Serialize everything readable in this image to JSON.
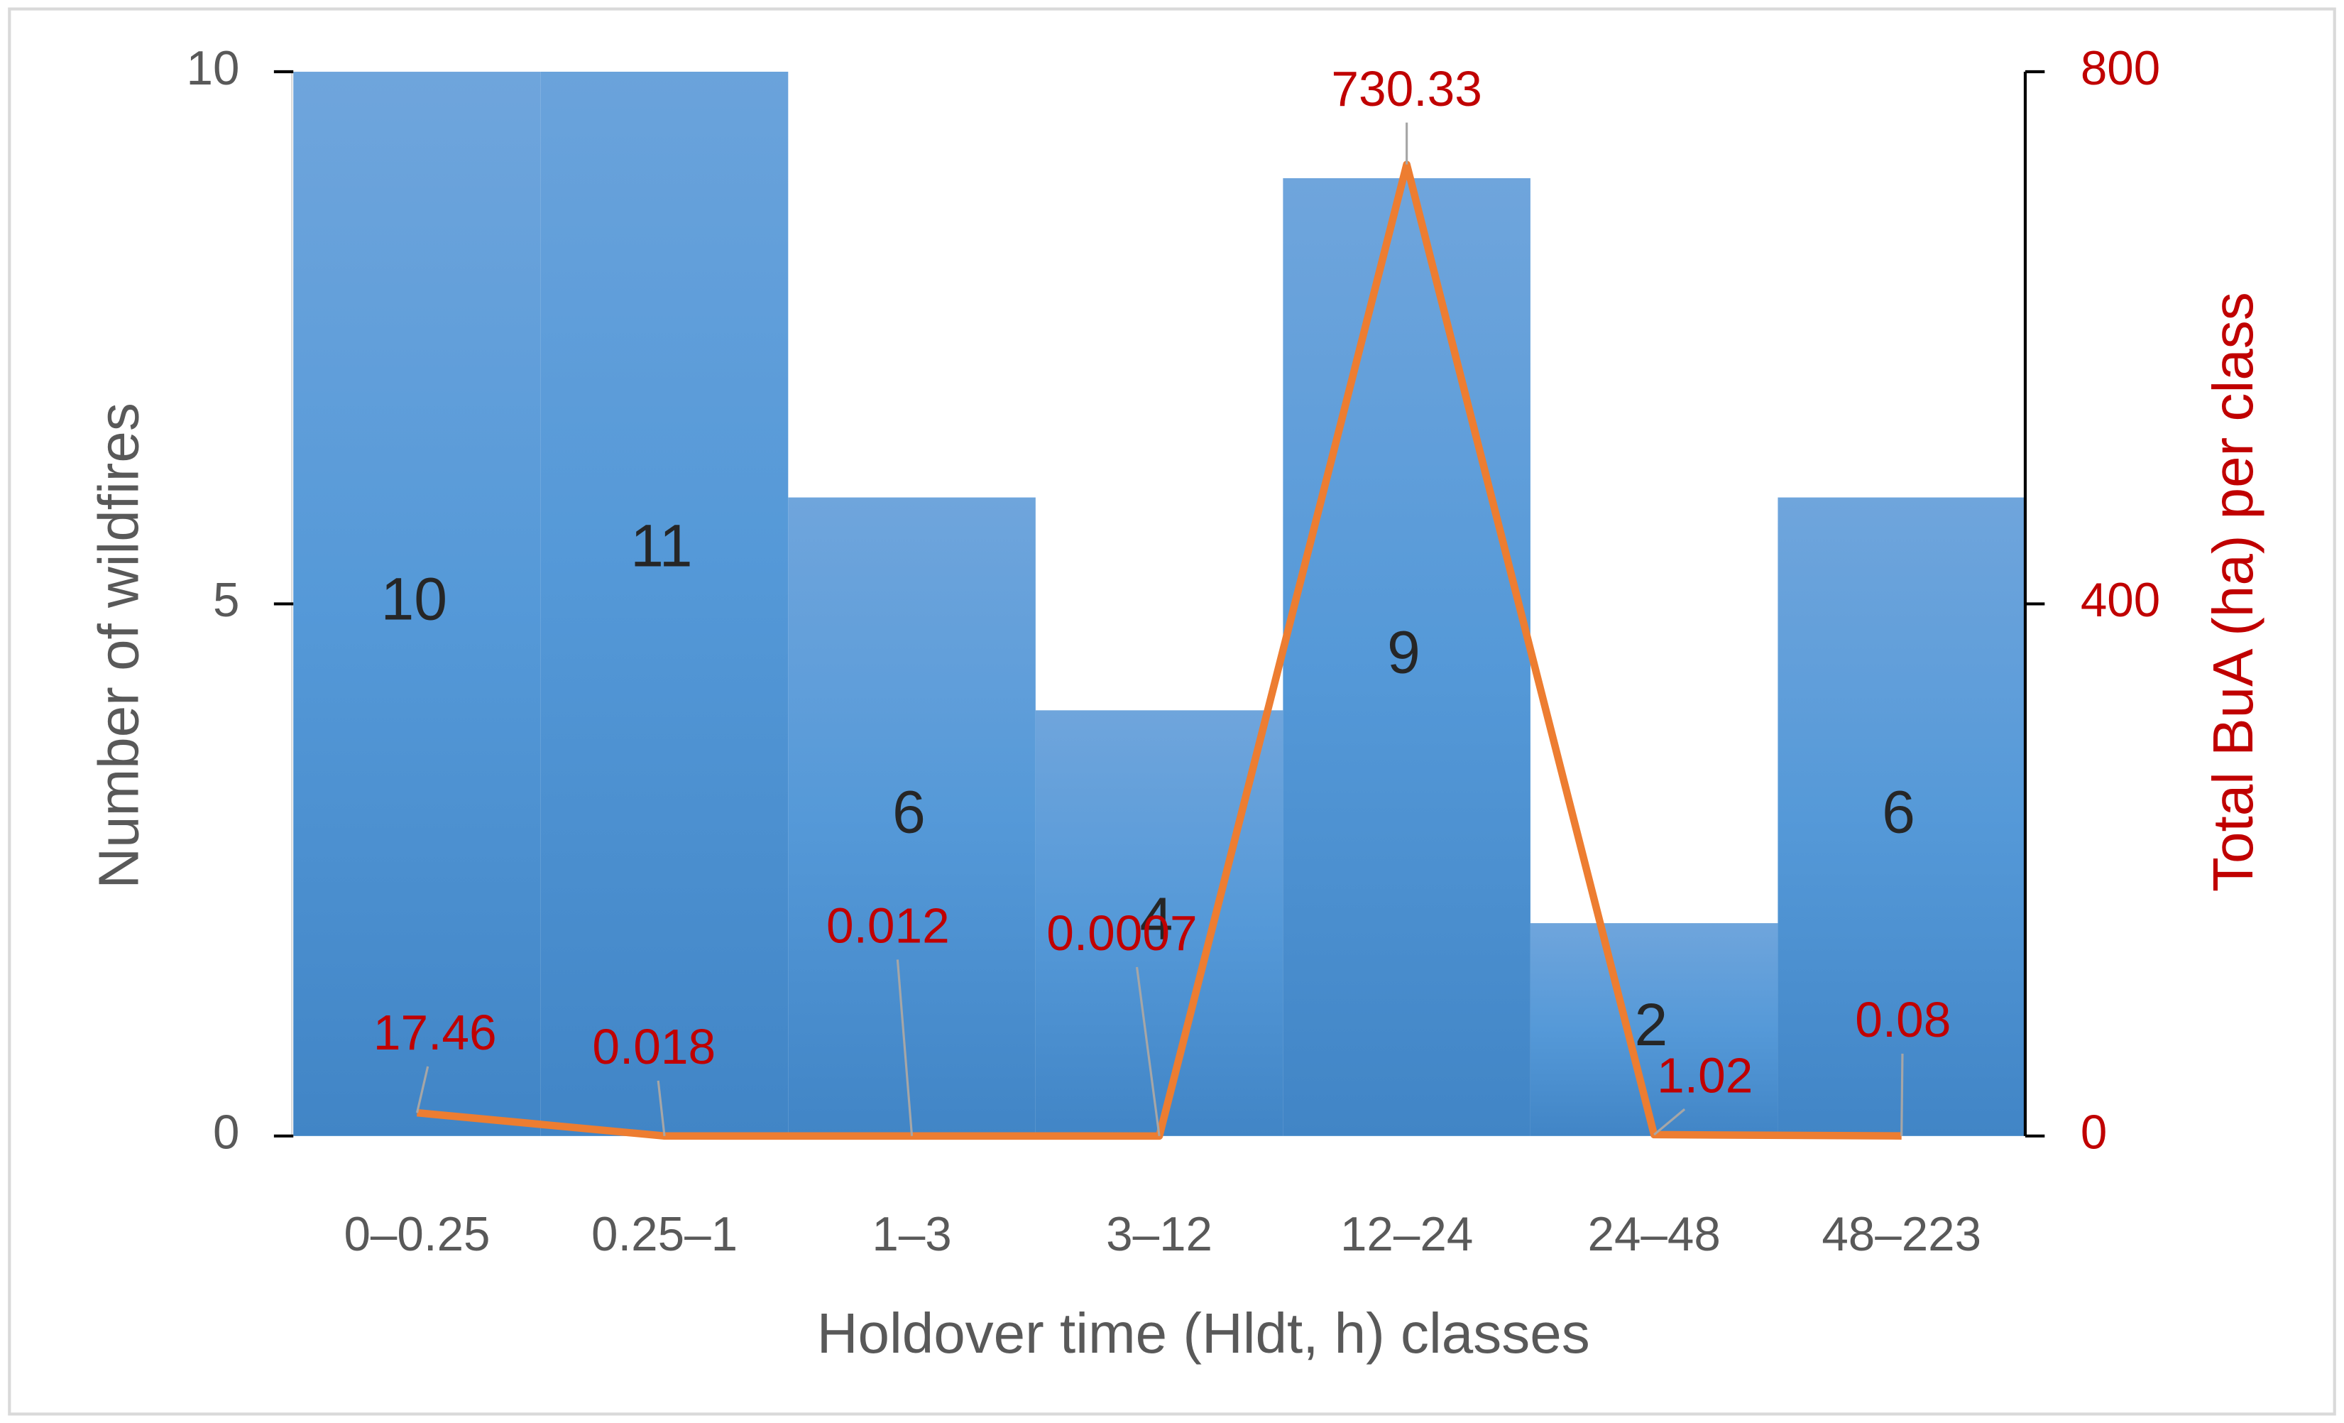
{
  "chart_data": {
    "type": "bar",
    "x_label": "Holdover time (Hldt, h) classes",
    "y_label": "Number of wildfires",
    "y2_label": "Total BuA (ha) per class",
    "categories": [
      "0–0.25",
      "0.25–1",
      "1–3",
      "3–12",
      "12–24",
      "24–48",
      "48–223"
    ],
    "series": [
      {
        "name": "Number of wildfires",
        "type": "bar",
        "color": "#5b9bd5",
        "values": [
          10,
          11,
          6,
          4,
          9,
          2,
          6
        ]
      },
      {
        "name": "Total BuA (ha) per class",
        "type": "line",
        "axis": "y2",
        "color": "#ed7d31",
        "values": [
          17.46,
          0.018,
          0.012,
          0.0007,
          730.33,
          1.02,
          0.08
        ]
      }
    ],
    "ylim": [
      0,
      10
    ],
    "yticks": [
      0,
      5,
      10
    ],
    "y2lim": [
      0,
      800
    ],
    "y2ticks": [
      0,
      400,
      800
    ],
    "y2_color": "#c00000"
  }
}
